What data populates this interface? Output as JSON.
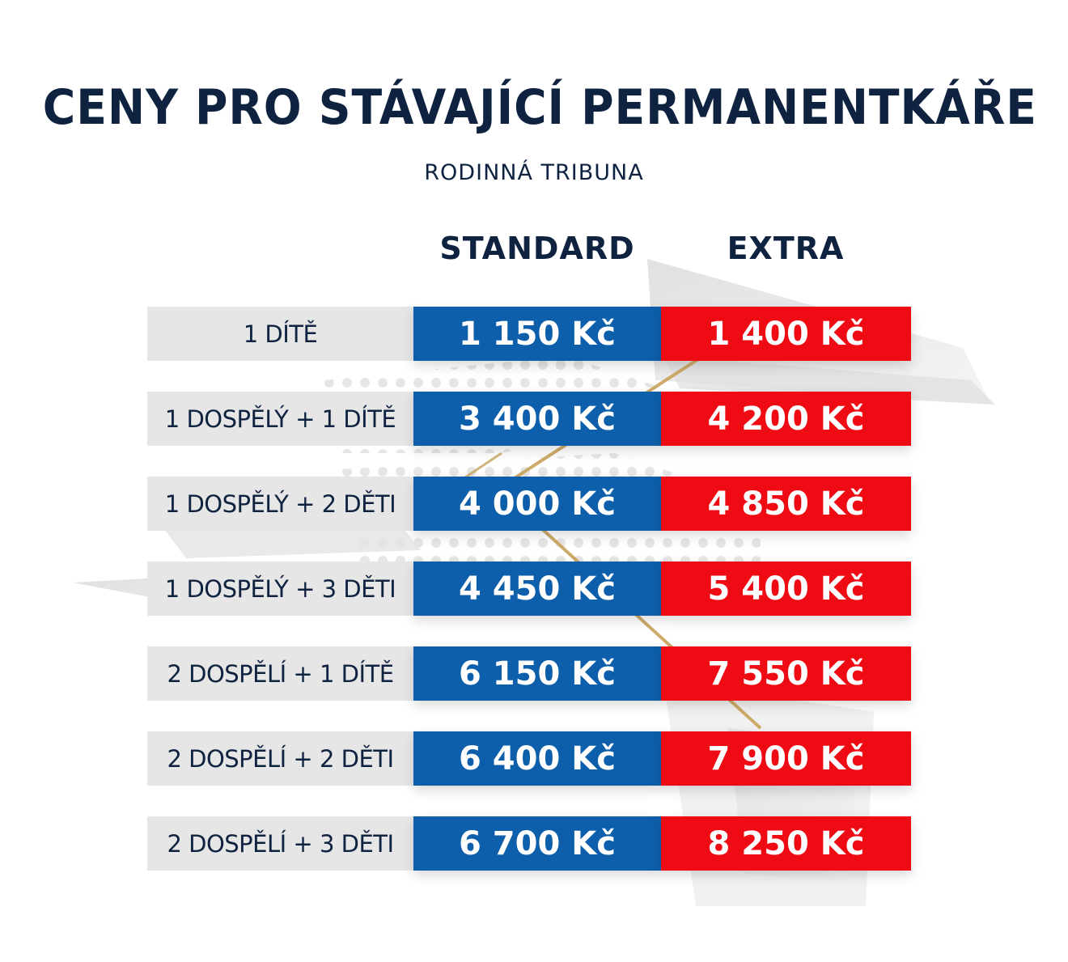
{
  "title": "CENY PRO STÁVAJÍCÍ PERMANENTKÁŘE",
  "subtitle": "RODINNÁ TRIBUNA",
  "columns": {
    "standard": "STANDARD",
    "extra": "EXTRA"
  },
  "colors": {
    "navy_text": "#0f2340",
    "standard_blue": "#0d5fab",
    "extra_red": "#ee0b14",
    "label_grey": "#e6e6e6",
    "accent_gold": "#c9a35a"
  },
  "rows": [
    {
      "label": "1 DÍTĚ",
      "standard": "1 150 Kč",
      "extra": "1 400 Kč"
    },
    {
      "label": "1 DOSPĚLÝ + 1 DÍTĚ",
      "standard": "3 400 Kč",
      "extra": "4 200 Kč"
    },
    {
      "label": "1 DOSPĚLÝ + 2 DĚTI",
      "standard": "4 000 Kč",
      "extra": "4 850 Kč"
    },
    {
      "label": "1 DOSPĚLÝ + 3 DĚTI",
      "standard": "4 450 Kč",
      "extra": "5 400 Kč"
    },
    {
      "label": "2 DOSPĚLÍ + 1 DÍTĚ",
      "standard": "6 150 Kč",
      "extra": "7 550 Kč"
    },
    {
      "label": "2 DOSPĚLÍ + 2 DĚTI",
      "standard": "6 400 Kč",
      "extra": "7 900 Kč"
    },
    {
      "label": "2 DOSPĚLÍ + 3 DĚTI",
      "standard": "6 700 Kč",
      "extra": "8 250 Kč"
    }
  ]
}
